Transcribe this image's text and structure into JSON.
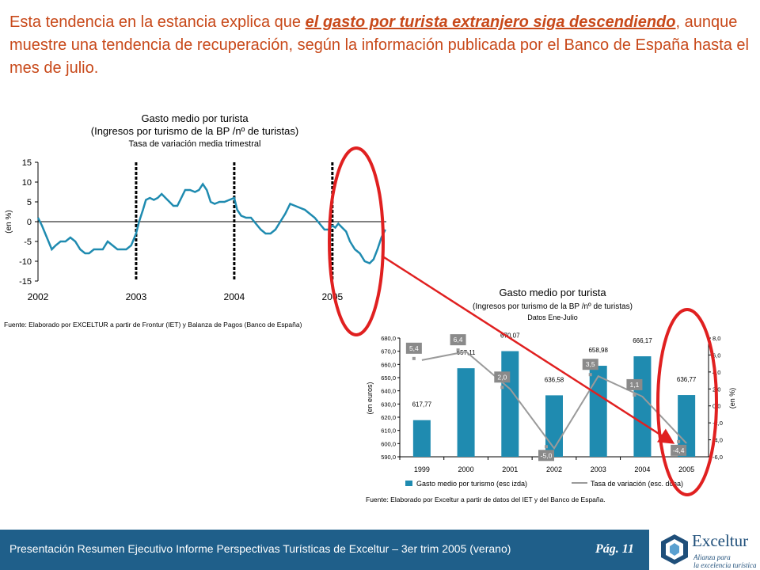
{
  "intro": {
    "part1": "Esta tendencia en la estancia explica que ",
    "emphasis": "el gasto por turista extranjero siga descendiendo",
    "part2": ", aunque muestre una tendencia de recuperación, según la información publicada por el Banco de España hasta el mes de julio."
  },
  "colors": {
    "text_accent": "#c8491a",
    "bar": "#1f8bb0",
    "line": "#9a9a9a",
    "circle": "#e02020",
    "arrow": "#e02020",
    "footer": "#1f5f8a"
  },
  "footer": {
    "text": "Presentación Resumen Ejecutivo Informe Perspectivas Turísticas de Exceltur – 3er trim 2005 (verano)",
    "page": "Pág. 11",
    "logo_name": "Exceltur",
    "logo_tag1": "Alianza para",
    "logo_tag2": "la excelencia turística",
    "logo_icon": "exceltur-cube-icon"
  },
  "chart_data": [
    {
      "type": "line",
      "title": "Gasto medio por turista",
      "subtitle": "(Ingresos por turismo de la BP /nº de turistas)",
      "subtitle2": "Tasa de variación  media trimestral",
      "ylabel": "(en %)",
      "ylim": [
        -15,
        15
      ],
      "yticks": [
        "15",
        "10",
        "5",
        "0",
        "-5",
        "-10",
        "-15"
      ],
      "xticks": [
        "2002",
        "2003",
        "2004",
        "2005"
      ],
      "x_range": [
        2002,
        2005.55
      ],
      "source": "Fuente: Elaborado por EXCELTUR a partir de Frontur (IET) y Balanza de Pagos (Banco de España)",
      "series": [
        {
          "x": [
            2002.0,
            2002.04,
            2002.09,
            2002.14,
            2002.18,
            2002.23,
            2002.28,
            2002.33,
            2002.38,
            2002.43,
            2002.48,
            2002.52,
            2002.57,
            2002.62,
            2002.66,
            2002.71,
            2002.76,
            2002.81,
            2002.85,
            2002.9,
            2002.95,
            2003.0,
            2003.03,
            2003.07,
            2003.1,
            2003.14,
            2003.18,
            2003.22,
            2003.26,
            2003.3,
            2003.34,
            2003.38,
            2003.42,
            2003.46,
            2003.5,
            2003.55,
            2003.6,
            2003.64,
            2003.68,
            2003.72,
            2003.76,
            2003.8,
            2003.85,
            2003.9,
            2003.95,
            2004.0,
            2004.03,
            2004.07,
            2004.12,
            2004.17,
            2004.22,
            2004.27,
            2004.32,
            2004.37,
            2004.42,
            2004.47,
            2004.52,
            2004.57,
            2004.62,
            2004.67,
            2004.72,
            2004.77,
            2004.82,
            2004.87,
            2004.92,
            2004.96,
            2005.0,
            2005.03,
            2005.06,
            2005.1,
            2005.14,
            2005.18,
            2005.23,
            2005.28,
            2005.33,
            2005.38,
            2005.42,
            2005.46,
            2005.5,
            2005.54
          ],
          "y": [
            1,
            -1,
            -4,
            -7,
            -6,
            -5,
            -5,
            -4,
            -5,
            -7,
            -8,
            -8,
            -7,
            -7,
            -7,
            -5,
            -6,
            -7,
            -7,
            -7,
            -6,
            -3,
            0,
            3,
            5.5,
            6,
            5.5,
            6,
            7,
            6,
            5,
            4,
            4,
            6,
            8,
            8,
            7.5,
            8,
            9.5,
            8,
            5,
            4.5,
            5,
            5,
            5.5,
            6,
            3,
            1.5,
            1,
            1,
            -0.5,
            -2,
            -3,
            -3,
            -2,
            0,
            2,
            4.5,
            4,
            3.5,
            3,
            2,
            1,
            -0.5,
            -2,
            -2,
            -1,
            -1.5,
            -0.5,
            -1.5,
            -2.5,
            -5,
            -7,
            -8,
            -10,
            -10.5,
            -9.5,
            -7,
            -4,
            -2
          ]
        }
      ],
      "markers_x": [
        2003,
        2004,
        2005
      ]
    },
    {
      "type": "bar",
      "title": "Gasto medio por turista",
      "subtitle": "(Ingresos por turismo de la BP /nº de turistas)",
      "subtitle2": "Datos Ene-Julio",
      "categories": [
        "1999",
        "2000",
        "2001",
        "2002",
        "2003",
        "2004",
        "2005"
      ],
      "ylabel": "(en euros)",
      "ylabel_right": "(en %)",
      "ylim": [
        590,
        680
      ],
      "ylim_right": [
        -6,
        8
      ],
      "yticks_left": [
        "680,0",
        "670,0",
        "660,0",
        "650,0",
        "640,0",
        "630,0",
        "620,0",
        "610,0",
        "600,0",
        "590,0"
      ],
      "yticks_right": [
        "8,0",
        "6,0",
        "4,0",
        "2,0",
        "0,0",
        "-2,0",
        "-4,0",
        "-6,0"
      ],
      "series": [
        {
          "name": "Gasto medio por turismo (esc izda)",
          "values": [
            617.77,
            657.11,
            670.07,
            636.58,
            658.98,
            666.17,
            636.77
          ],
          "labels": [
            "617,77",
            "657,11",
            "670,07",
            "636,58",
            "658,98",
            "666,17",
            "636,77"
          ]
        },
        {
          "name": "Tasa de variación (esc. dcha)",
          "values": [
            5.4,
            6.4,
            2.0,
            -5.0,
            3.5,
            1.1,
            -4.4
          ],
          "labels": [
            "5,4",
            "6,4",
            "2,0",
            "-5,0",
            "3,5",
            "1,1",
            "-4,4"
          ]
        }
      ],
      "source": "Fuente: Elaborado por Exceltur a partir de datos del IET y del Banco de España."
    }
  ]
}
